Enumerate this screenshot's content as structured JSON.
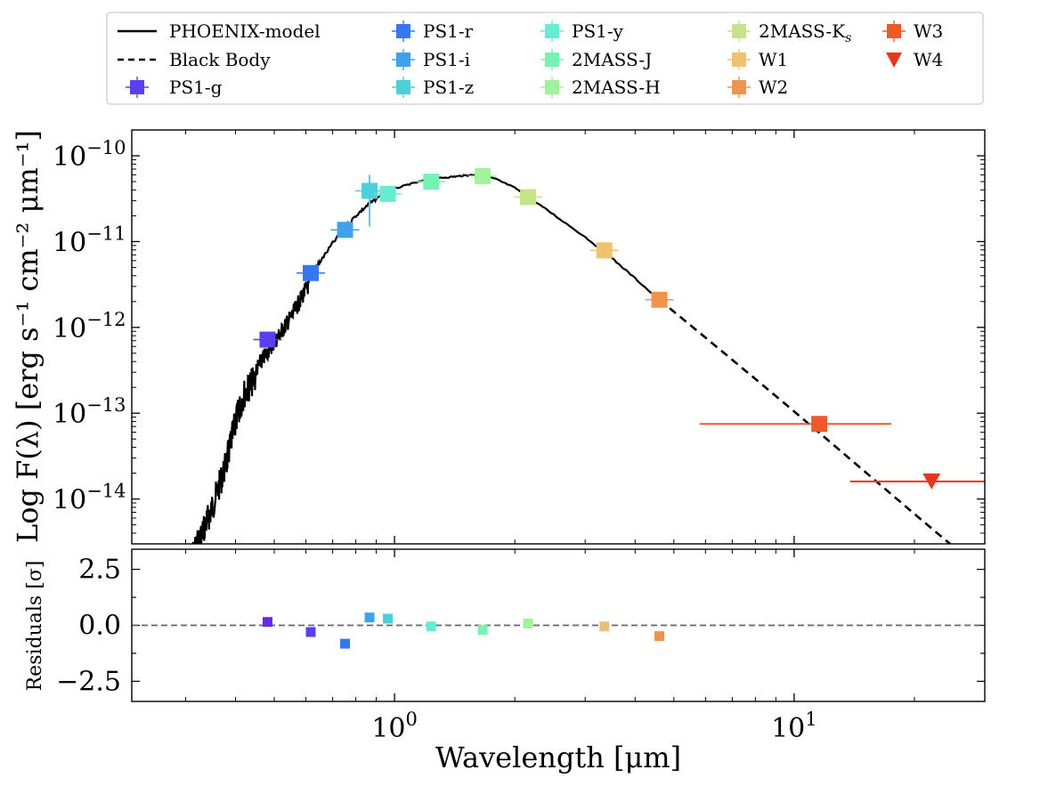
{
  "chart_data": [
    {
      "type": "scatter",
      "xlabel": "Wavelength [μm]",
      "ylabel": "Log F(λ) [erg s⁻¹ cm⁻² μm⁻¹]",
      "xscale": "log",
      "yscale": "log",
      "xlim": [
        0.22,
        30
      ],
      "ylim": [
        3e-15,
        2e-10
      ],
      "x_ticks": [
        {
          "value": 1,
          "base": "10",
          "exp": "0"
        },
        {
          "value": 10,
          "base": "10",
          "exp": "1"
        }
      ],
      "y_ticks": [
        {
          "value": 1e-10,
          "base": "10",
          "exp": "−10"
        },
        {
          "value": 1e-11,
          "base": "10",
          "exp": "−11"
        },
        {
          "value": 1e-12,
          "base": "10",
          "exp": "−12"
        },
        {
          "value": 1e-13,
          "base": "10",
          "exp": "−13"
        },
        {
          "value": 1e-14,
          "base": "10",
          "exp": "−14"
        }
      ],
      "legend_position": "top, outside plot",
      "legend": [
        {
          "label": "PHOENIX-model",
          "marker": "solid-line",
          "color": "#000000"
        },
        {
          "label": "Black Body",
          "marker": "dashed-line",
          "color": "#000000"
        },
        {
          "label": "PS1-g",
          "marker": "square",
          "color": "#5a3ff0"
        },
        {
          "label": "PS1-r",
          "marker": "square",
          "color": "#3478ee"
        },
        {
          "label": "PS1-i",
          "marker": "square",
          "color": "#3fa2ea"
        },
        {
          "label": "PS1-z",
          "marker": "square",
          "color": "#4ccfd9"
        },
        {
          "label": "PS1-y",
          "marker": "square",
          "color": "#66ecd3"
        },
        {
          "label": "2MASS-J",
          "marker": "square",
          "color": "#76f2b2"
        },
        {
          "label": "2MASS-H",
          "marker": "square",
          "color": "#a0f39a"
        },
        {
          "label": "2MASS-K",
          "label_sub": "s",
          "marker": "square",
          "color": "#c4e489"
        },
        {
          "label": "W1",
          "marker": "square",
          "color": "#efc26f"
        },
        {
          "label": "W2",
          "marker": "square",
          "color": "#f0944d"
        },
        {
          "label": "W3",
          "marker": "square",
          "color": "#ec5a2c"
        },
        {
          "label": "W4",
          "marker": "triangle-down",
          "color": "#e8351e"
        }
      ],
      "series": [
        {
          "name": "PS1-g",
          "x": 0.481,
          "y": 7.2e-13,
          "yerr_low": 6e-14,
          "yerr_high": 1.2e-13
        },
        {
          "name": "PS1-r",
          "x": 0.617,
          "y": 4.3e-12
        },
        {
          "name": "PS1-i",
          "x": 0.752,
          "y": 1.37e-11
        },
        {
          "name": "PS1-z",
          "x": 0.866,
          "y": 3.9e-11,
          "yerr_low": 2.4e-11,
          "yerr_high": 2.1e-11
        },
        {
          "name": "PS1-y",
          "x": 0.962,
          "y": 3.6e-11
        },
        {
          "name": "2MASS-J",
          "x": 1.235,
          "y": 5e-11
        },
        {
          "name": "2MASS-H",
          "x": 1.662,
          "y": 5.8e-11
        },
        {
          "name": "2MASS-Ks",
          "x": 2.159,
          "y": 3.3e-11
        },
        {
          "name": "W1",
          "x": 3.35,
          "y": 7.9e-12
        },
        {
          "name": "W2",
          "x": 4.6,
          "y": 2.1e-12
        },
        {
          "name": "W3",
          "x": 11.56,
          "y": 7.5e-14,
          "xerr_low": 5.8,
          "xerr_high": 17.5
        },
        {
          "name": "W4",
          "x": 22.08,
          "y": 1.6e-14,
          "upper_limit": true,
          "xerr_low": 13.8,
          "xerr_high": 30
        }
      ],
      "lines": [
        {
          "name": "PHOENIX-model",
          "style": "solid",
          "x": [
            0.31,
            0.33,
            0.35,
            0.38,
            0.4,
            0.42,
            0.45,
            0.48,
            0.52,
            0.56,
            0.6,
            0.65,
            0.7,
            0.75,
            0.8,
            0.85,
            0.9,
            1.0,
            1.1,
            1.2,
            1.3,
            1.4,
            1.5,
            1.6,
            1.7,
            1.8,
            2.0,
            2.2,
            2.5,
            3.0,
            3.5,
            4.0,
            4.6
          ],
          "y": [
            3e-15,
            6e-15,
            1.2e-14,
            4e-14,
            1.2e-13,
            2.5e-13,
            4e-13,
            6.5e-13,
            1.1e-12,
            1.9e-12,
            3.5e-12,
            6e-12,
            1e-11,
            1.5e-11,
            2.1e-11,
            2.7e-11,
            3.3e-11,
            4.2e-11,
            4.8e-11,
            5.3e-11,
            5.6e-11,
            5.8e-11,
            6e-11,
            6.1e-11,
            5.9e-11,
            5.4e-11,
            4.3e-11,
            3.2e-11,
            2.1e-11,
            1.15e-11,
            6.5e-12,
            3.8e-12,
            2.1e-12
          ]
        },
        {
          "name": "Black Body",
          "style": "dashed",
          "x": [
            4.6,
            6,
            8,
            10,
            12,
            15,
            20,
            25,
            28
          ],
          "y": [
            2.1e-12,
            7.6e-13,
            2.5e-13,
            1.05e-13,
            5.1e-14,
            2.1e-14,
            6.7e-15,
            2.8e-15,
            1.8e-15
          ]
        }
      ]
    },
    {
      "type": "scatter",
      "xlabel": "Wavelength [μm]",
      "ylabel": "Residuals [σ]",
      "xscale": "log",
      "xlim": [
        0.22,
        30
      ],
      "ylim": [
        -3.4,
        3.4
      ],
      "y_ticks": [
        "2.5",
        "0.0",
        "−2.5"
      ],
      "hline": 0.0,
      "points": [
        {
          "name": "PS1-g",
          "x": 0.481,
          "y": 0.15,
          "color": "#6a28e8"
        },
        {
          "name": "PS1-r",
          "x": 0.617,
          "y": -0.3,
          "color": "#5a3ff0"
        },
        {
          "name": "PS1-i",
          "x": 0.752,
          "y": -0.82,
          "color": "#3478ee"
        },
        {
          "name": "PS1-z",
          "x": 0.866,
          "y": 0.35,
          "color": "#3fa2ea"
        },
        {
          "name": "PS1-y",
          "x": 0.962,
          "y": 0.3,
          "color": "#4ccfd9"
        },
        {
          "name": "2MASS-J",
          "x": 1.235,
          "y": -0.05,
          "color": "#66ecd3"
        },
        {
          "name": "2MASS-H",
          "x": 1.662,
          "y": -0.2,
          "color": "#76f2b2"
        },
        {
          "name": "2MASS-Ks",
          "x": 2.159,
          "y": 0.08,
          "color": "#a0f39a"
        },
        {
          "name": "W1",
          "x": 3.35,
          "y": -0.05,
          "color": "#e8c076"
        },
        {
          "name": "W2",
          "x": 4.6,
          "y": -0.48,
          "color": "#f0944d"
        }
      ]
    }
  ]
}
